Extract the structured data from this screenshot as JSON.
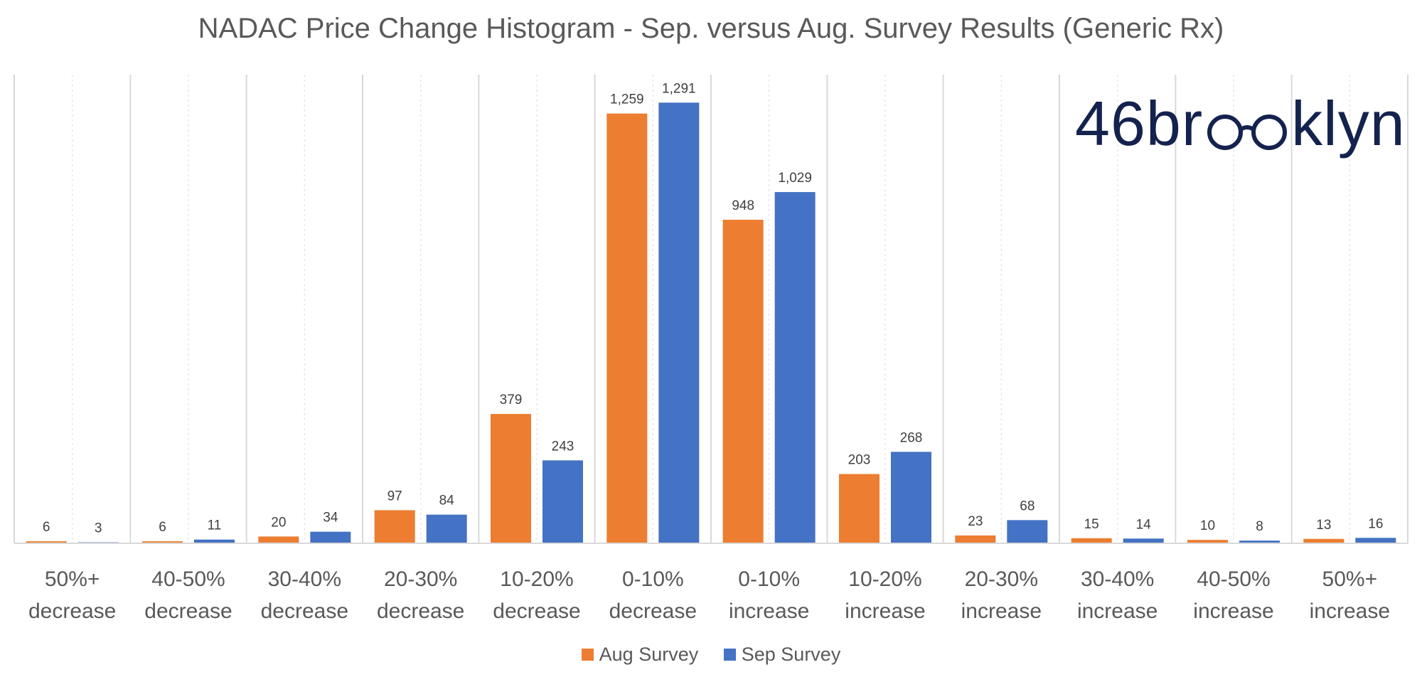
{
  "chart_data": {
    "type": "bar",
    "title": "NADAC Price Change Histogram - Sep. versus Aug. Survey Results (Generic Rx)",
    "categories": [
      [
        "50%+",
        "decrease"
      ],
      [
        "40-50%",
        "decrease"
      ],
      [
        "30-40%",
        "decrease"
      ],
      [
        "20-30%",
        "decrease"
      ],
      [
        "10-20%",
        "decrease"
      ],
      [
        "0-10%",
        "decrease"
      ],
      [
        "0-10%",
        "increase"
      ],
      [
        "10-20%",
        "increase"
      ],
      [
        "20-30%",
        "increase"
      ],
      [
        "30-40%",
        "increase"
      ],
      [
        "40-50%",
        "increase"
      ],
      [
        "50%+",
        "increase"
      ]
    ],
    "series": [
      {
        "name": "Aug Survey",
        "color": "#ed7d31",
        "values": [
          6,
          6,
          20,
          97,
          379,
          1259,
          948,
          203,
          23,
          15,
          10,
          13
        ],
        "labels": [
          "6",
          "6",
          "20",
          "97",
          "379",
          "1,259",
          "948",
          "203",
          "23",
          "15",
          "10",
          "13"
        ]
      },
      {
        "name": "Sep Survey",
        "color": "#4472c4",
        "values": [
          3,
          11,
          34,
          84,
          243,
          1291,
          1029,
          268,
          68,
          14,
          8,
          16
        ],
        "labels": [
          "3",
          "11",
          "34",
          "84",
          "243",
          "1,291",
          "1,029",
          "268",
          "68",
          "14",
          "8",
          "16"
        ]
      }
    ],
    "ylim": [
      0,
      1400
    ],
    "grid": "vertical",
    "legend_position": "bottom"
  },
  "brand": {
    "logo_left": "46br",
    "logo_right": "klyn",
    "icon": "eyeglasses-icon"
  }
}
